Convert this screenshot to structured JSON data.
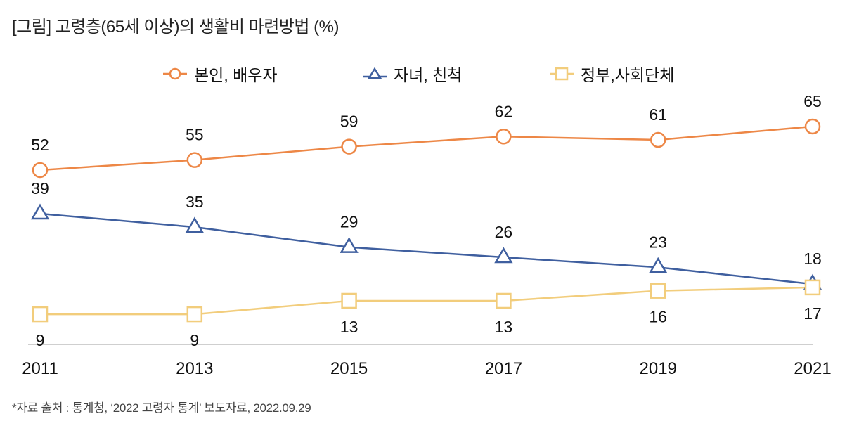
{
  "chart_data": {
    "type": "line",
    "title": "[그림] 고령층(65세 이상)의 생활비 마련방법 (%)",
    "xlabel": "",
    "ylabel": "",
    "x": [
      "2011",
      "2013",
      "2015",
      "2017",
      "2019",
      "2021"
    ],
    "ylim": [
      0,
      70
    ],
    "grid": false,
    "legend_position": "top-center",
    "series": [
      {
        "name": "본인, 배우자",
        "marker": "circle",
        "color": "#ED8746",
        "values": [
          52,
          55,
          59,
          62,
          61,
          65
        ],
        "label_position": "above"
      },
      {
        "name": "자녀, 친척",
        "marker": "triangle",
        "color": "#3F5F9F",
        "values": [
          39,
          35,
          29,
          26,
          23,
          18
        ],
        "label_position": "above"
      },
      {
        "name": "정부,사회단체",
        "marker": "square",
        "color": "#F2CD7C",
        "values": [
          9,
          9,
          13,
          13,
          16,
          17
        ],
        "label_position": "below"
      }
    ],
    "source_note": "*자료 출처 : 통계청, ‘2022 고령자 통계’ 보도자료, 2022.09.29"
  },
  "axis_color": "#BFBFBF"
}
